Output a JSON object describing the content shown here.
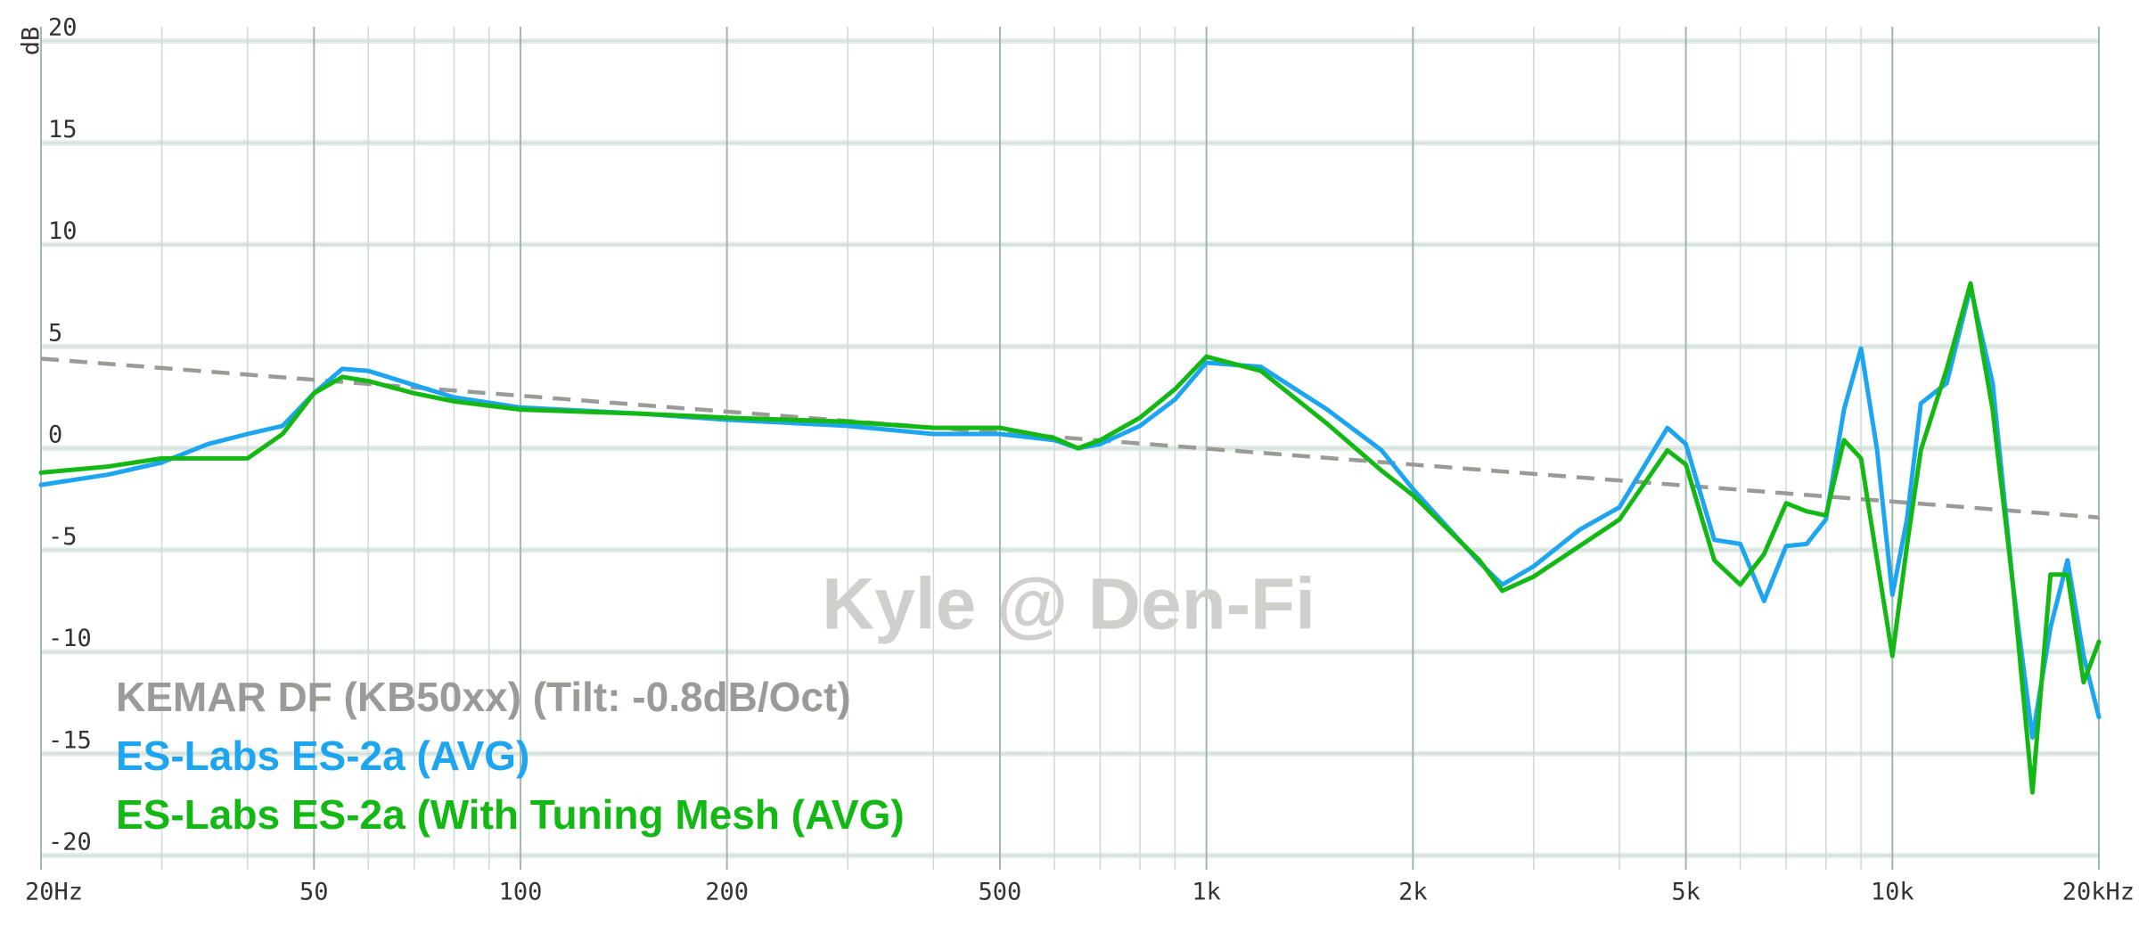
{
  "chart_data": {
    "type": "line",
    "y_label": "dB",
    "annotation": "Kyle @ Den-Fi",
    "log_x": true,
    "grid": true,
    "legend": "bottom-left",
    "xlim": [
      20,
      20000
    ],
    "ylim": [
      -20,
      20
    ],
    "xticks": [
      {
        "value": 20,
        "label": "20Hz"
      },
      50,
      100,
      200,
      500,
      {
        "value": 1000,
        "label": "1k"
      },
      {
        "value": 2000,
        "label": "2k"
      },
      {
        "value": 5000,
        "label": "5k"
      },
      {
        "value": 10000,
        "label": "10k"
      },
      {
        "value": 20000,
        "label": "20kHz"
      }
    ],
    "xgrid_minor": [
      30,
      40,
      60,
      70,
      80,
      90,
      300,
      400,
      600,
      700,
      800,
      900,
      3000,
      4000,
      6000,
      7000,
      8000,
      9000
    ],
    "yticks": [
      20,
      15,
      10,
      5,
      0,
      -5,
      -10,
      -15,
      -20
    ],
    "x": [
      20,
      25,
      30,
      35,
      40,
      45,
      50,
      55,
      60,
      70,
      80,
      100,
      150,
      200,
      300,
      400,
      500,
      600,
      650,
      700,
      800,
      900,
      1000,
      1200,
      1500,
      1800,
      2000,
      2500,
      2700,
      3000,
      3500,
      4000,
      4700,
      5000,
      5500,
      6000,
      6500,
      7000,
      7500,
      8000,
      8500,
      9000,
      9500,
      10000,
      10500,
      11000,
      12000,
      13000,
      14000,
      15000,
      16000,
      17000,
      18000,
      19000,
      20000
    ],
    "series": [
      {
        "name": "KEMAR DF (KB50xx) (Tilt: -0.8dB/Oct)",
        "color": "#9a9a96",
        "dashed": true,
        "x": [
          20,
          20000
        ],
        "values": [
          4.4,
          -3.4
        ]
      },
      {
        "name": "ES-Labs ES-2a (AVG)",
        "color": "#1ea5ef",
        "dashed": false,
        "values": [
          -1.8,
          -1.3,
          -0.7,
          0.2,
          0.7,
          1.1,
          2.7,
          3.9,
          3.8,
          3.1,
          2.5,
          2.0,
          1.7,
          1.4,
          1.1,
          0.7,
          0.7,
          0.4,
          0,
          0.2,
          1.1,
          2.4,
          4.2,
          4.0,
          1.9,
          -0.1,
          -2.0,
          -5.6,
          -6.7,
          -5.8,
          -4.0,
          -2.9,
          1.0,
          0.2,
          -4.5,
          -4.7,
          -7.5,
          -4.8,
          -4.7,
          -3.5,
          1.9,
          4.9,
          -0.1,
          -7.2,
          -3.5,
          2.2,
          3.2,
          7.9,
          3.2,
          -6.8,
          -14.2,
          -8.8,
          -5.5,
          -10.2,
          -13.2
        ]
      },
      {
        "name": "ES-Labs ES-2a (With Tuning Mesh (AVG)",
        "color": "#14b814",
        "dashed": false,
        "values": [
          -1.2,
          -0.9,
          -0.5,
          -0.5,
          -0.5,
          0.7,
          2.7,
          3.5,
          3.3,
          2.7,
          2.3,
          1.9,
          1.7,
          1.5,
          1.3,
          1.0,
          1.0,
          0.5,
          0,
          0.4,
          1.5,
          2.9,
          4.5,
          3.8,
          1.2,
          -1.1,
          -2.3,
          -5.5,
          -7.0,
          -6.3,
          -4.8,
          -3.5,
          -0.1,
          -0.8,
          -5.5,
          -6.7,
          -5.2,
          -2.7,
          -3.1,
          -3.3,
          0.4,
          -0.5,
          -5.5,
          -10.2,
          -4.8,
          -0.1,
          3.9,
          8.1,
          1.9,
          -6.8,
          -16.9,
          -6.2,
          -6.2,
          -11.5,
          -9.5
        ]
      }
    ]
  }
}
